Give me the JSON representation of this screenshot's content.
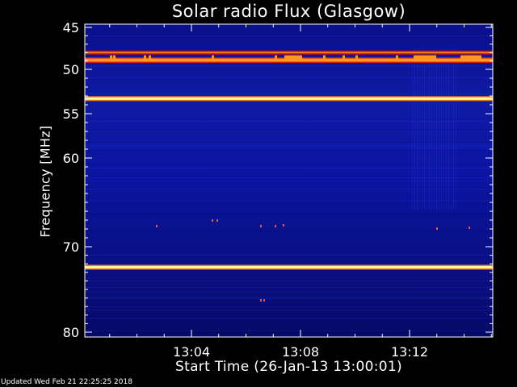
{
  "chart_data": {
    "type": "heatmap",
    "title": "Solar radio Flux (Glasgow)",
    "ylabel": "Frequency [MHz]",
    "xlabel": "Start Time (26-Jan-13 13:00:01)",
    "y_ticks": [
      45,
      50,
      55,
      60,
      70,
      80
    ],
    "x_ticks": [
      "13:04",
      "13:08",
      "13:12"
    ],
    "bright_bands_mhz": [
      48.0,
      48.9,
      53.3,
      72.4
    ]
  },
  "footer": "Updated Wed Feb 21 22:25:25 2018"
}
